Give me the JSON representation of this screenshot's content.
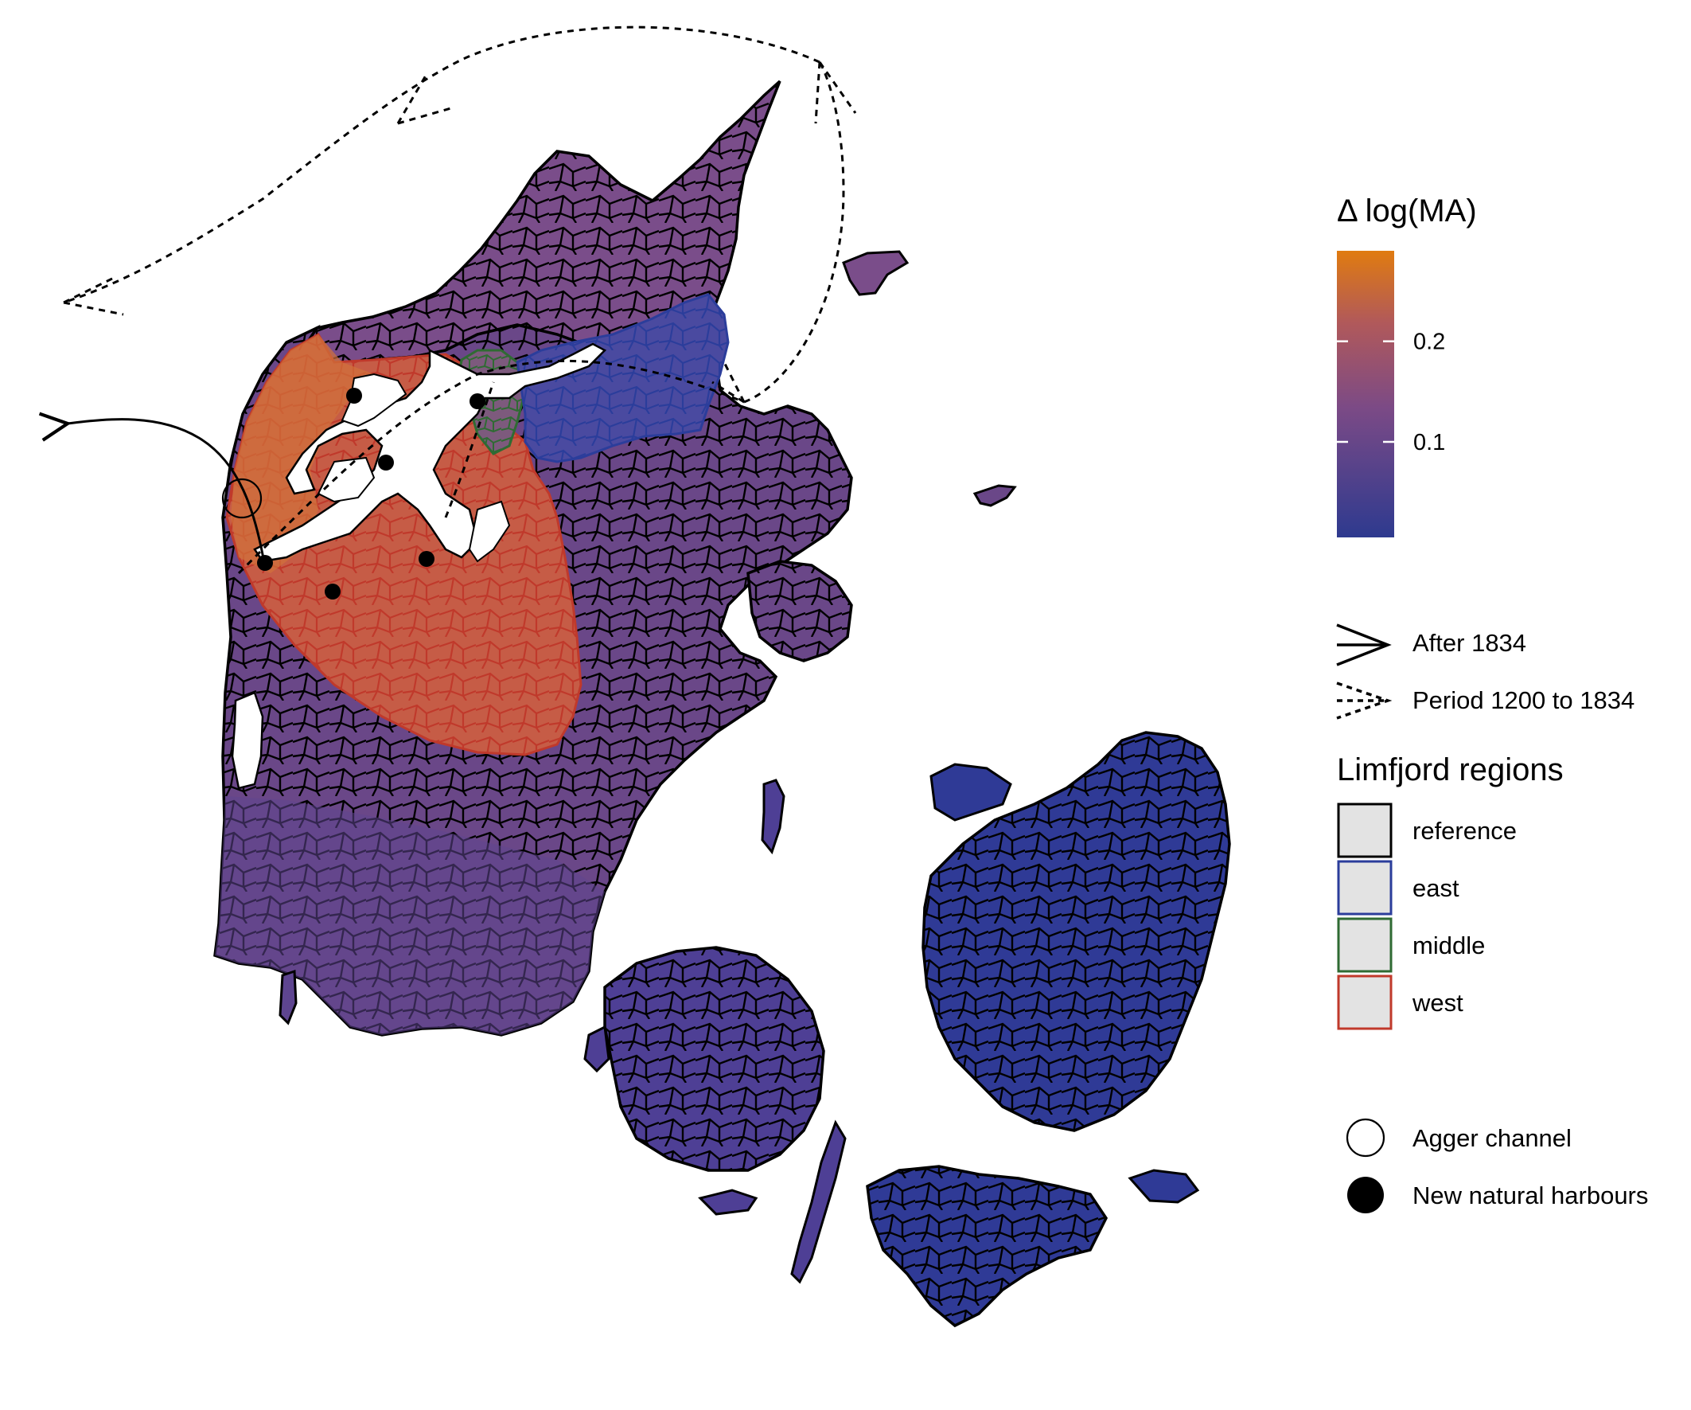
{
  "colorbar": {
    "title": "Δ log(MA)",
    "ticks": [
      {
        "value": 0.2,
        "label": "0.2"
      },
      {
        "value": 0.1,
        "label": "0.1"
      }
    ],
    "min": 0.005,
    "max": 0.29,
    "low_color": "#2e3a8f",
    "mid_color": "#b1595a",
    "high_color": "#e07b10"
  },
  "route_legend": {
    "after": "After 1834",
    "period": "Period 1200 to 1834"
  },
  "region_legend": {
    "title": "Limfjord regions",
    "items": [
      {
        "label": "reference",
        "color": "#000000"
      },
      {
        "label": "east",
        "color": "#2b3d9b"
      },
      {
        "label": "middle",
        "color": "#2f6b33"
      },
      {
        "label": "west",
        "color": "#c0392b"
      }
    ]
  },
  "marker_legend": {
    "agger": "Agger channel",
    "harbours": "New natural harbours"
  },
  "fill_colors": {
    "west_region": "#c65c46",
    "west_core": "#d2723a",
    "north_jutland": "#7a4d8a",
    "jutland_mid": "#6a4788",
    "south_jutland": "#5e4590",
    "funen": "#4e3f95",
    "zealand": "#2f3a96",
    "east_region": "#4a4aa0",
    "middle_region": "#7d5a7d"
  }
}
